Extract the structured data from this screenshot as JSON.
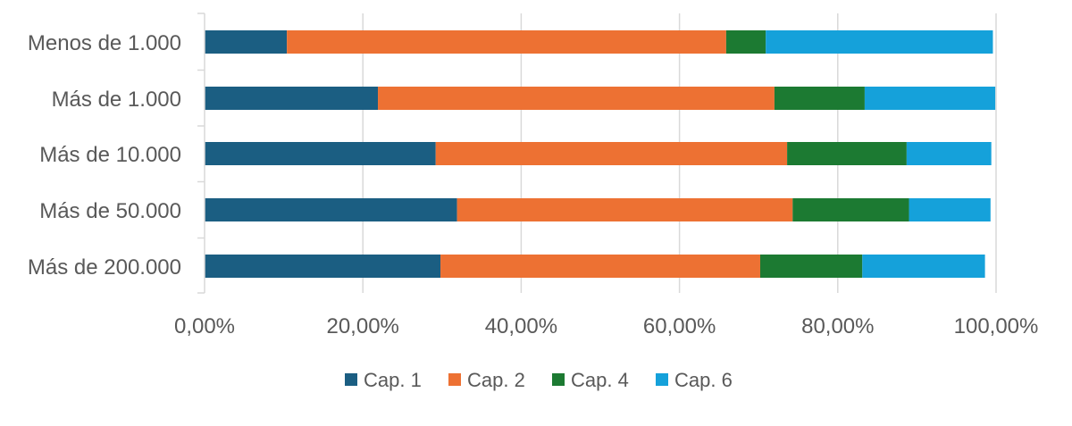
{
  "chart_data": {
    "type": "bar",
    "orientation": "horizontal",
    "stacked": true,
    "categories": [
      "Menos de 1.000",
      "Más de 1.000",
      "Más de 10.000",
      "Más de 50.000",
      "Más de 200.000"
    ],
    "series": [
      {
        "name": "Cap. 1",
        "color": "#1b5e82",
        "values": [
          10.4,
          21.9,
          29.2,
          31.9,
          29.8
        ]
      },
      {
        "name": "Cap. 2",
        "color": "#ed7133",
        "values": [
          55.5,
          50.1,
          44.4,
          42.4,
          40.4
        ]
      },
      {
        "name": "Cap. 4",
        "color": "#1c7a32",
        "values": [
          5.0,
          11.4,
          15.1,
          14.7,
          12.9
        ]
      },
      {
        "name": "Cap. 6",
        "color": "#15a1da",
        "values": [
          28.7,
          16.5,
          10.7,
          10.3,
          15.5
        ]
      }
    ],
    "xlim": [
      0,
      100
    ],
    "xticks": [
      0,
      20,
      40,
      60,
      80,
      100
    ],
    "xtick_labels": [
      "0,00%",
      "20,00%",
      "40,00%",
      "60,00%",
      "80,00%",
      "100,00%"
    ],
    "grid": true,
    "legend_position": "bottom"
  }
}
